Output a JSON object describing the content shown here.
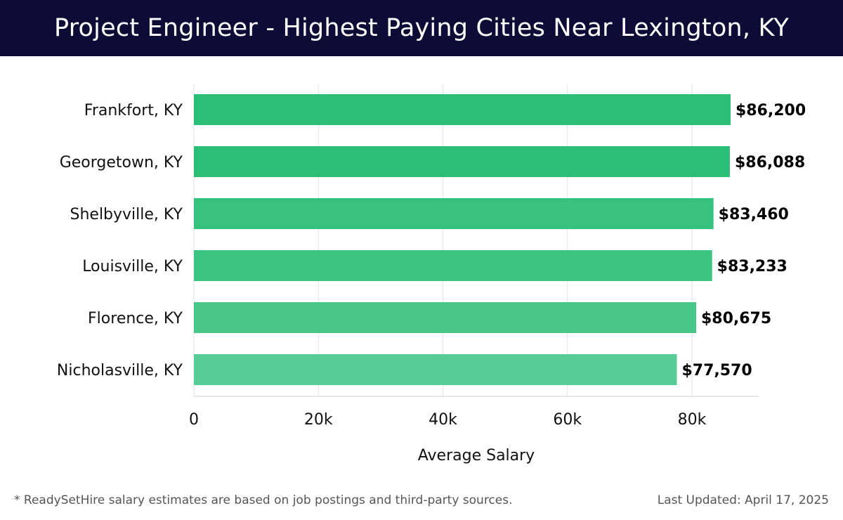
{
  "header": {
    "title": "Project Engineer - Highest Paying Cities Near Lexington, KY"
  },
  "chart_data": {
    "type": "bar",
    "orientation": "horizontal",
    "categories": [
      "Frankfort, KY",
      "Georgetown, KY",
      "Shelbyville, KY",
      "Louisville, KY",
      "Florence, KY",
      "Nicholasville, KY"
    ],
    "values": [
      86200,
      86088,
      83460,
      83233,
      80675,
      77570
    ],
    "value_labels": [
      "$86,200",
      "$86,088",
      "$83,460",
      "$83,233",
      "$80,675",
      "$77,570"
    ],
    "xlabel": "Average Salary",
    "ylabel": "",
    "xlim": [
      0,
      90000
    ],
    "x_ticks": [
      0,
      20000,
      40000,
      60000,
      80000
    ],
    "x_tick_labels": [
      "0",
      "20k",
      "40k",
      "60k",
      "80k"
    ],
    "grid": "vertical",
    "bar_colors": [
      "#2bbf76",
      "#2bbf76",
      "#36c27d",
      "#3ac47f",
      "#47c88a",
      "#57cc95"
    ]
  },
  "footer": {
    "note": "* ReadySetHire salary estimates are based on job postings and third-party sources.",
    "updated": "Last Updated: April 17, 2025"
  }
}
